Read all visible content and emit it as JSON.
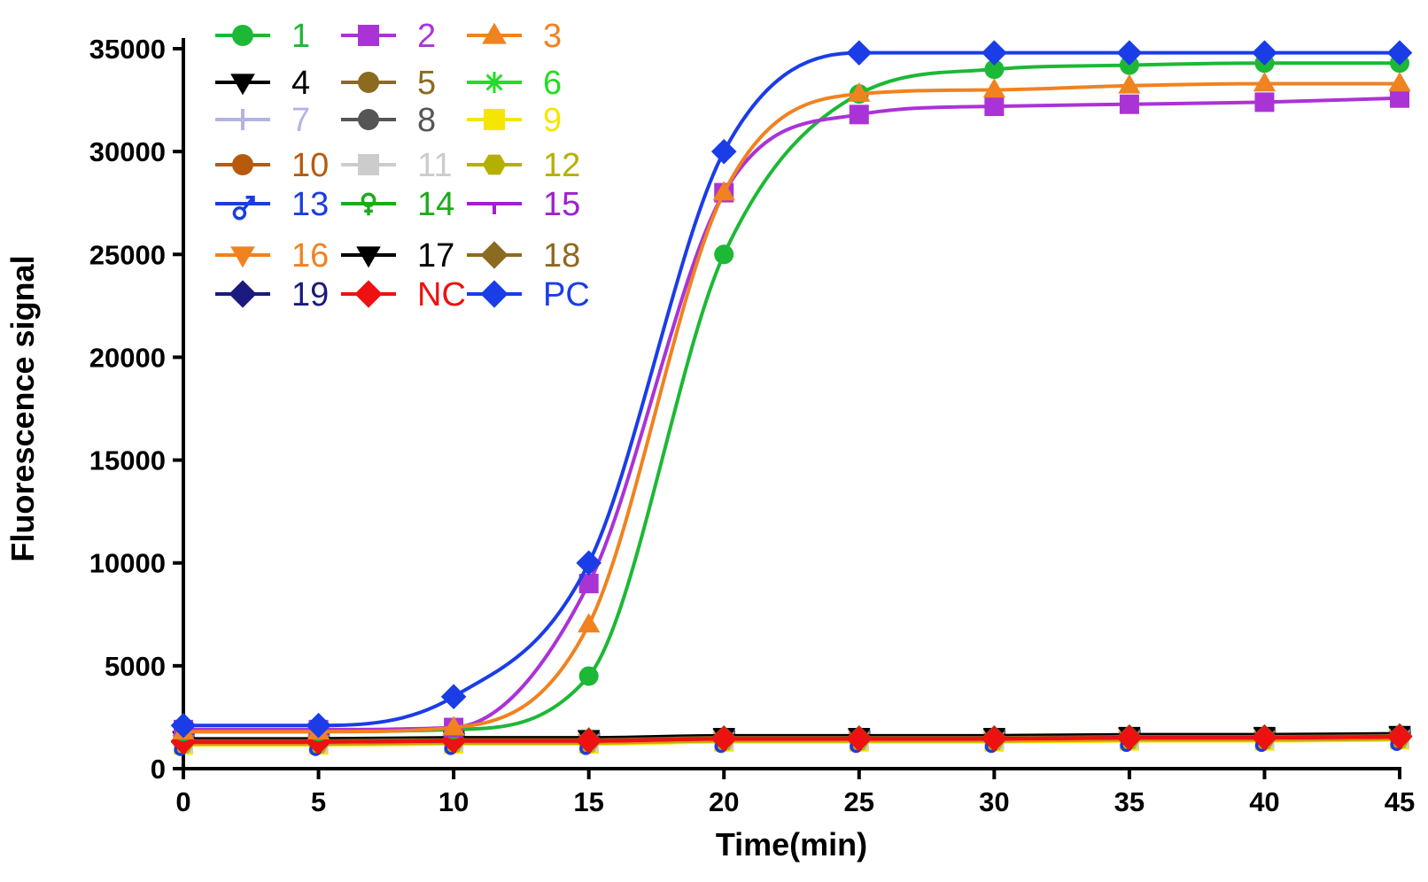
{
  "chart_data": {
    "type": "line",
    "xlabel": "Time(min)",
    "ylabel": "Fluorescence signal",
    "xlim": [
      0,
      45
    ],
    "ylim": [
      0,
      35000
    ],
    "x": [
      0,
      5,
      10,
      15,
      20,
      25,
      30,
      35,
      40,
      45
    ],
    "x_tick_labels": [
      "0",
      "5",
      "10",
      "15",
      "20",
      "25",
      "30",
      "35",
      "40",
      "45"
    ],
    "y_ticks": [
      0,
      5000,
      10000,
      15000,
      20000,
      25000,
      30000,
      35000
    ],
    "y_tick_labels": [
      "0",
      "5000",
      "10000",
      "15000",
      "20000",
      "25000",
      "30000",
      "35000"
    ],
    "grid": false,
    "legend_position": "top-left",
    "series": [
      {
        "name": "1",
        "color": "#1db835",
        "marker": "circle",
        "values": [
          1800,
          1800,
          1900,
          4500,
          25000,
          32800,
          34000,
          34200,
          34300,
          34300
        ]
      },
      {
        "name": "2",
        "color": "#aa33d6",
        "marker": "square",
        "values": [
          1900,
          1900,
          2000,
          9000,
          28000,
          31800,
          32200,
          32300,
          32400,
          32600
        ]
      },
      {
        "name": "3",
        "color": "#f08220",
        "marker": "triangle",
        "values": [
          1800,
          1800,
          2000,
          7000,
          28000,
          32800,
          33000,
          33200,
          33300,
          33300
        ]
      },
      {
        "name": "4",
        "color": "#000000",
        "marker": "triangle-down",
        "values": [
          1400,
          1400,
          1450,
          1450,
          1550,
          1550,
          1550,
          1600,
          1600,
          1650
        ]
      },
      {
        "name": "5",
        "color": "#8c6a20",
        "marker": "circle",
        "values": [
          1350,
          1350,
          1400,
          1400,
          1500,
          1500,
          1500,
          1550,
          1550,
          1600
        ]
      },
      {
        "name": "6",
        "color": "#22dd22",
        "marker": "asterisk",
        "values": [
          1300,
          1300,
          1350,
          1350,
          1450,
          1450,
          1450,
          1500,
          1500,
          1550
        ]
      },
      {
        "name": "7",
        "color": "#b3b3e6",
        "marker": "plus",
        "values": [
          1300,
          1300,
          1300,
          1300,
          1400,
          1400,
          1400,
          1450,
          1450,
          1500
        ]
      },
      {
        "name": "8",
        "color": "#555555",
        "marker": "circle",
        "values": [
          1350,
          1350,
          1400,
          1400,
          1450,
          1450,
          1450,
          1500,
          1500,
          1550
        ]
      },
      {
        "name": "9",
        "color": "#f5e600",
        "marker": "square",
        "values": [
          1150,
          1150,
          1200,
          1200,
          1300,
          1300,
          1300,
          1350,
          1350,
          1400
        ]
      },
      {
        "name": "10",
        "color": "#b85a0d",
        "marker": "circle",
        "values": [
          1300,
          1300,
          1350,
          1350,
          1450,
          1450,
          1450,
          1500,
          1500,
          1550
        ]
      },
      {
        "name": "11",
        "color": "#cccccc",
        "marker": "square",
        "values": [
          1250,
          1250,
          1300,
          1300,
          1400,
          1400,
          1400,
          1450,
          1450,
          1500
        ]
      },
      {
        "name": "12",
        "color": "#b5b000",
        "marker": "hexagon",
        "values": [
          1200,
          1200,
          1250,
          1250,
          1350,
          1350,
          1350,
          1400,
          1400,
          1450
        ]
      },
      {
        "name": "13",
        "color": "#1a3de0",
        "marker": "male",
        "values": [
          1350,
          1350,
          1400,
          1400,
          1500,
          1500,
          1500,
          1550,
          1550,
          1600
        ]
      },
      {
        "name": "14",
        "color": "#1daa1d",
        "marker": "female",
        "values": [
          1350,
          1350,
          1400,
          1400,
          1500,
          1500,
          1500,
          1550,
          1550,
          1600
        ]
      },
      {
        "name": "15",
        "color": "#a020d0",
        "marker": "tee",
        "values": [
          1300,
          1300,
          1350,
          1350,
          1450,
          1450,
          1450,
          1500,
          1500,
          1550
        ]
      },
      {
        "name": "16",
        "color": "#f08220",
        "marker": "triangle-down",
        "values": [
          1250,
          1250,
          1300,
          1300,
          1400,
          1400,
          1400,
          1450,
          1450,
          1500
        ]
      },
      {
        "name": "17",
        "color": "#000000",
        "marker": "triangle-down",
        "values": [
          1450,
          1450,
          1500,
          1500,
          1600,
          1600,
          1600,
          1650,
          1650,
          1700
        ]
      },
      {
        "name": "18",
        "color": "#8c6a20",
        "marker": "diamond",
        "values": [
          1350,
          1350,
          1400,
          1400,
          1500,
          1500,
          1500,
          1550,
          1550,
          1600
        ]
      },
      {
        "name": "19",
        "color": "#1a1a80",
        "marker": "diamond",
        "values": [
          1300,
          1300,
          1350,
          1350,
          1450,
          1450,
          1450,
          1500,
          1500,
          1550
        ]
      },
      {
        "name": "NC",
        "color": "#ee1111",
        "marker": "diamond",
        "values": [
          1300,
          1300,
          1350,
          1350,
          1450,
          1450,
          1450,
          1500,
          1500,
          1550
        ]
      },
      {
        "name": "PC",
        "color": "#1a3de8",
        "marker": "diamond",
        "values": [
          2100,
          2100,
          3500,
          10000,
          30000,
          34800,
          34800,
          34800,
          34800,
          34800
        ]
      }
    ]
  }
}
